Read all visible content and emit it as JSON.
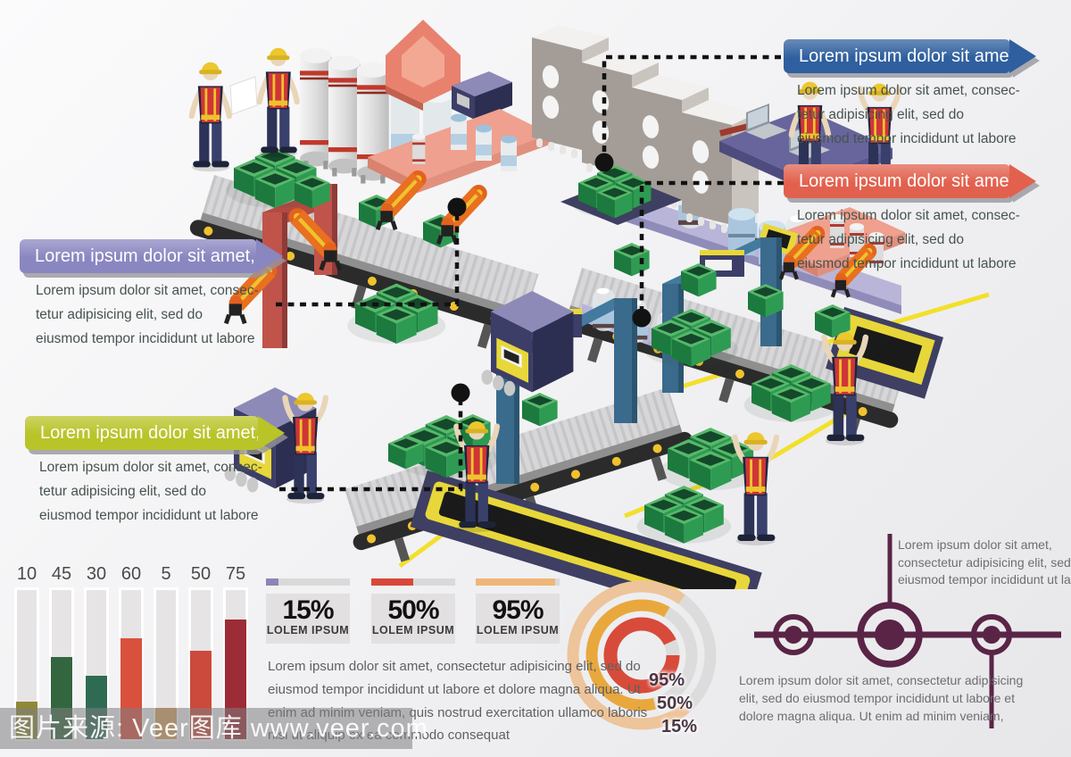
{
  "watermark": {
    "text": "图片来源: Veer图库 www.veer.com"
  },
  "callouts": {
    "blue": {
      "title": "Lorem ipsum dolor sit amet,",
      "color": "#2f5f9e",
      "lines": [
        "Lorem ipsum dolor sit amet, consec-",
        "tetur adipisicing elit, sed do",
        "eiusmod tempor incididunt ut labore"
      ]
    },
    "red": {
      "title": "Lorem ipsum dolor sit amet,",
      "color": "#e2614e",
      "lines": [
        "Lorem ipsum dolor sit amet, consec-",
        "tetur adipisicing elit, sed do",
        "eiusmod tempor incididunt ut labore"
      ]
    },
    "purple": {
      "title": "Lorem ipsum dolor sit amet,",
      "color": "#8a86c0",
      "lines": [
        "Lorem ipsum dolor sit amet, consec-",
        "tetur adipisicing elit, sed do",
        "eiusmod tempor incididunt ut labore"
      ]
    },
    "green": {
      "title": "Lorem ipsum dolor sit amet,",
      "color": "#b9c428",
      "lines": [
        "Lorem ipsum dolor sit amet, consec-",
        "tetur adipisicing elit, sed do",
        "eiusmod tempor incididunt ut labore"
      ]
    }
  },
  "mid_paragraph": {
    "lines": [
      "Lorem ipsum dolor sit amet, consectetur adipisicing elit, sed do",
      "eiusmod tempor incididunt ut labore et dolore magna aliqua. Ut",
      "enim ad minim veniam, quis nostrud exercitation ullamco laboris",
      "nisi ut aliquip ex ea commodo consequat"
    ]
  },
  "airplane_diagram": {
    "color": "#5a2446",
    "top_lines": [
      "Lorem ipsum dolor sit amet,",
      "consectetur adipisicing elit, sed do",
      "eiusmod tempor incididunt ut labore"
    ],
    "bottom_lines": [
      "Lorem ipsum dolor sit amet, consectetur adipisicing",
      "elit, sed do eiusmod tempor incididunt ut labore et",
      "dolore magna aliqua. Ut enim ad minim veniam,"
    ]
  },
  "chart_data": [
    {
      "type": "bar",
      "values": [
        10,
        45,
        30,
        60,
        5,
        50,
        75
      ],
      "colors": [
        "#8f8936",
        "#33663f",
        "#2f6b52",
        "#d9513d",
        "#dba55e",
        "#cc4a3c",
        "#9c2c35"
      ],
      "track_color": "#e6e4e5",
      "value_labels_position": "top",
      "ylim": [
        0,
        100
      ]
    },
    {
      "type": "bar",
      "subtype": "kpi-progress-cards",
      "values": [
        15,
        50,
        95
      ],
      "labels": [
        "15%",
        "50%",
        "95%"
      ],
      "sub_labels": [
        "LOLEM IPSUM",
        "LOLEM IPSUM",
        "LOLEM IPSUM"
      ],
      "colors": [
        "#8a87b5",
        "#d9473b",
        "#efb678"
      ],
      "track_color": "#d9d9d9",
      "card_bg": "#e2e0e1"
    },
    {
      "type": "pie",
      "subtype": "concentric-donut",
      "values": [
        95,
        50,
        15
      ],
      "labels": [
        "95%",
        "50%",
        "15%"
      ],
      "ring_colors": [
        "#d84b3a",
        "#e8a83e",
        "#eec49a"
      ],
      "ring_gray": "#dcdcdc",
      "visual_fill": [
        0.93,
        0.625,
        0.71
      ],
      "start_rotation": [
        0,
        75,
        50
      ],
      "label_color": "#4a3644"
    }
  ],
  "factory_scene": {
    "elements": [
      "workers-in-safety-vests",
      "storage-tanks",
      "server-cabinets",
      "conveyor-belts",
      "robotic-arms",
      "green-crates",
      "assembly-machines",
      "laptops-on-desk",
      "glass-bottles",
      "yellow-safety-path",
      "dashed-callout-leaders"
    ]
  }
}
